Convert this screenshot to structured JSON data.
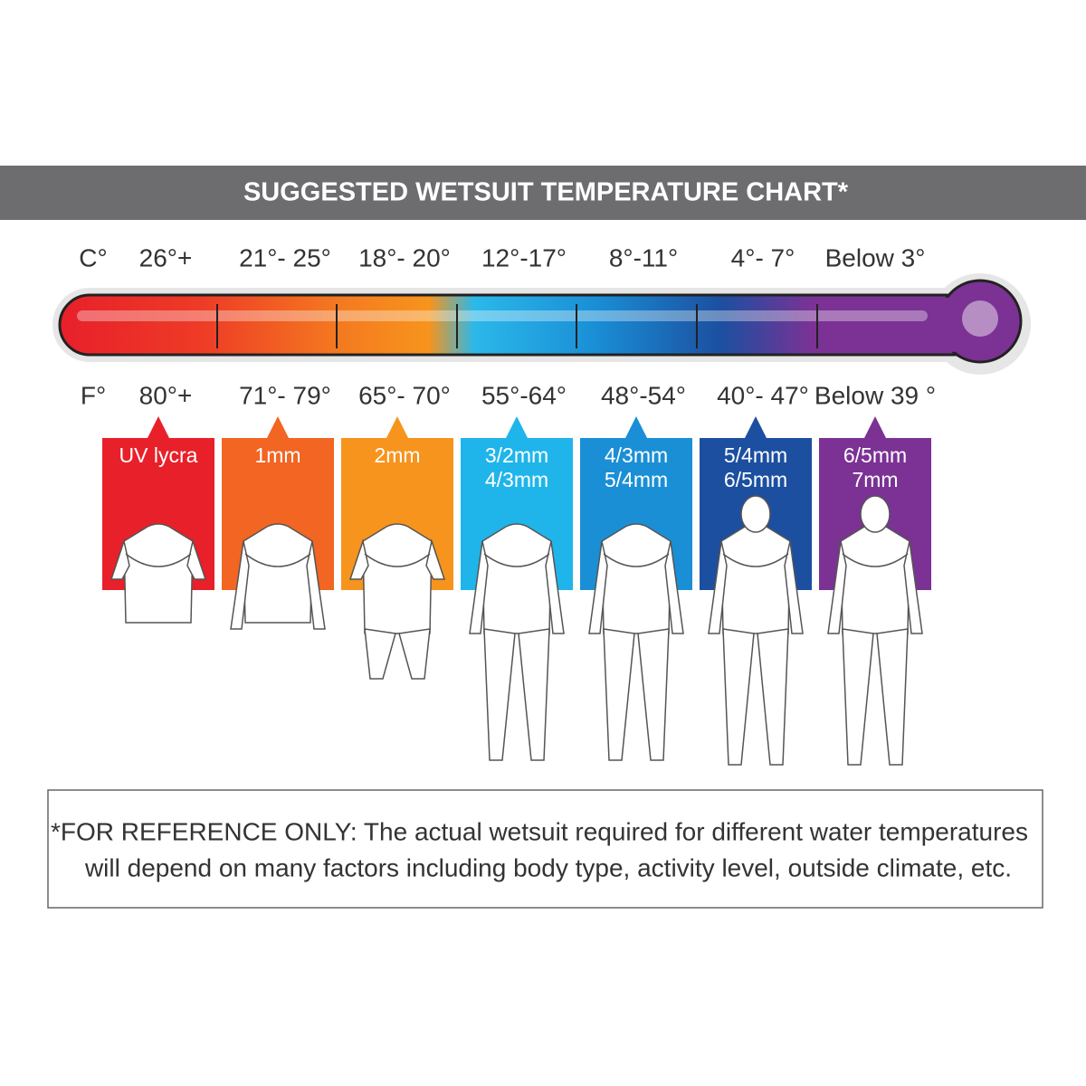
{
  "header": {
    "title": "SUGGESTED WETSUIT TEMPERATURE CHART*"
  },
  "scale": {
    "celsius_unit": "C°",
    "fahrenheit_unit": "F°"
  },
  "ranges": [
    {
      "celsius": "26°+",
      "fahrenheit": "80°+",
      "suit": [
        "UV lycra"
      ]
    },
    {
      "celsius": "21°- 25°",
      "fahrenheit": "71°- 79°",
      "suit": [
        "1mm"
      ]
    },
    {
      "celsius": "18°- 20°",
      "fahrenheit": "65°- 70°",
      "suit": [
        "2mm"
      ]
    },
    {
      "celsius": "12°-17°",
      "fahrenheit": "55°-64°",
      "suit": [
        "3/2mm",
        "4/3mm"
      ]
    },
    {
      "celsius": "8°-11°",
      "fahrenheit": "48°-54°",
      "suit": [
        "4/3mm",
        "5/4mm"
      ]
    },
    {
      "celsius": "4°- 7°",
      "fahrenheit": "40°- 47°",
      "suit": [
        "5/4mm",
        "6/5mm"
      ]
    },
    {
      "celsius": "Below 3°",
      "fahrenheit": "Below 39 °",
      "suit": [
        "6/5mm",
        "7mm"
      ]
    }
  ],
  "footnote": [
    "*FOR REFERENCE ONLY: The actual wetsuit required for different water temperatures",
    "will depend on many factors including body type, activity level, outside climate, etc."
  ]
}
